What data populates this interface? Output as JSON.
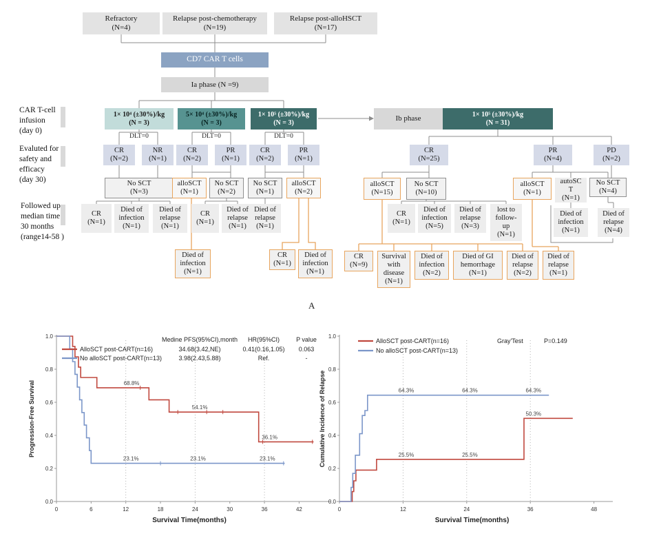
{
  "figure_label": "A",
  "flow": {
    "dlt_label": "DLT=0",
    "side_labels": {
      "infusion": "CAR T-cell\ninfusion\n(day 0)",
      "evaluated": "Evaluted for\n safety and\nefficacy\n(day 30)",
      "followup": "Followed up\nmedian time\n30 months\n(range14-58 )"
    },
    "nodes": {
      "refractory": {
        "label": "Refractory\n(N=4)"
      },
      "relapseChemo": {
        "label": "Relapse post-chemotherapy\n(N=19)"
      },
      "relapseAllo": {
        "label": "Relapse post-alloHSCT\n(N=17)"
      },
      "cd7": {
        "label": "CD7 CAR T cells"
      },
      "iaPhase": {
        "label": "Ia phase (N =9)"
      },
      "dose1": {
        "label": "1× 10⁴ (±30%)/kg\n(N = 3)"
      },
      "dose2": {
        "label": "5× 10⁴ (±30%)/kg\n(N = 3)"
      },
      "dose3": {
        "label": "1× 10⁵ (±30%)/kg\n(N = 3)"
      },
      "ibPhase": {
        "label": "Ib phase"
      },
      "dose4": {
        "label": "1× 10⁵ (±30%)/kg\n(N = 31)"
      },
      "cr1": {
        "label": "CR\n(N=2)"
      },
      "nr1": {
        "label": "NR\n(N=1)"
      },
      "cr2": {
        "label": "CR\n(N=2)"
      },
      "pr2": {
        "label": "PR\n(N=1)"
      },
      "cr3": {
        "label": "CR\n(N=2)"
      },
      "pr3": {
        "label": "PR\n(N=1)"
      },
      "cr25": {
        "label": "CR\n(N=25)"
      },
      "pr4": {
        "label": "PR\n(N=4)"
      },
      "pd2": {
        "label": "PD\n(N=2)"
      },
      "noSCT3": {
        "label": "No SCT\n(N=3)"
      },
      "alloSCT1": {
        "label": "alloSCT\n(N=1)"
      },
      "noSCT2": {
        "label": "No SCT\n(N=2)"
      },
      "noSCT1": {
        "label": "No SCT\n(N=1)"
      },
      "alloSCT2": {
        "label": "alloSCT\n(N=2)"
      },
      "alloSCT15": {
        "label": "alloSCT\n(N=15)"
      },
      "noSCT10": {
        "label": "No SCT\n(N=10)"
      },
      "alloSCT1b": {
        "label": "alloSCT\n(N=1)"
      },
      "autoSCT": {
        "label": "autoSC\nT\n(N=1)"
      },
      "noSCT4": {
        "label": "No SCT\n(N=4)"
      },
      "l_cr1": {
        "label": "CR\n(N=1)"
      },
      "l_inf1": {
        "label": "Died of\ninfection\n(N=1)"
      },
      "l_rel1": {
        "label": "Died of\nrelapse\n(N=1)"
      },
      "l_cr2": {
        "label": "CR\n(N=1)"
      },
      "l_rel2": {
        "label": "Died of\nrelapse\n(N=1)"
      },
      "l_rel3": {
        "label": "Died of\nrelapse\n(N=1)"
      },
      "r_cr1": {
        "label": "CR\n(N=1)"
      },
      "r_inf5": {
        "label": "Died of\ninfection\n(N=5)"
      },
      "r_rel3": {
        "label": "Died of\nrelapse\n(N=3)"
      },
      "r_lost": {
        "label": "lost to\nfollow-\nup\n(N=1)"
      },
      "r_inf1": {
        "label": "Died of\ninfection\n(N=1)"
      },
      "r_rel4": {
        "label": "Died of\nrelapse\n(N=4)"
      },
      "o_inf1": {
        "label": "Died of\ninfection\n(N=1)"
      },
      "o_cr1": {
        "label": "CR\n(N=1)"
      },
      "o_inf2": {
        "label": "Died of\ninfection\n(N=1)"
      },
      "o_cr9": {
        "label": "CR\n(N=9)"
      },
      "o_surv": {
        "label": "Survival\nwith\ndisease\n(N=1)"
      },
      "o_inf3": {
        "label": "Died of\ninfection\n(N=2)"
      },
      "o_gi": {
        "label": "Died of  GI\nhemorrhage\n(N=1)"
      },
      "o_rel2": {
        "label": "Died of\nrelapse\n(N=2)"
      },
      "o_rel1": {
        "label": "Died of\nrelapse\n(N=1)"
      }
    }
  },
  "chart_data": [
    {
      "id": "pfs",
      "type": "line",
      "subtype": "kaplan-meier-step",
      "ylabel": "Progression-Free Survival",
      "xlabel": "Survival Time(months)",
      "xlim": [
        0,
        46
      ],
      "ylim": [
        0,
        1
      ],
      "xticks": [
        0,
        6,
        12,
        18,
        24,
        30,
        36,
        42
      ],
      "yticks": [
        0.0,
        0.2,
        0.4,
        0.6,
        0.8,
        1.0
      ],
      "grid_x": [
        12,
        24,
        36
      ],
      "legend": {
        "columns": [
          "Medine PFS(95%CI),month",
          "HR(95%CI)",
          "P value"
        ],
        "rows": [
          {
            "name": "AlloSCT post-CART(n=16)",
            "color": "#c0483e",
            "values": [
              "34.68(3.42,NE)",
              "0.41(0.16,1.05)",
              "0.063"
            ]
          },
          {
            "name": "No alloSCT post-CART(n=13)",
            "color": "#7b96c9",
            "values": [
              "3.98(2.43,5.88)",
              "Ref.",
              "-"
            ]
          }
        ]
      },
      "series": [
        {
          "name": "AlloSCT post-CART(n=16)",
          "color": "#c0483e",
          "steps": [
            [
              0,
              1
            ],
            [
              2.8,
              1
            ],
            [
              2.8,
              0.938
            ],
            [
              3.2,
              0.938
            ],
            [
              3.2,
              0.875
            ],
            [
              3.8,
              0.875
            ],
            [
              3.8,
              0.813
            ],
            [
              4.2,
              0.813
            ],
            [
              4.2,
              0.75
            ],
            [
              7,
              0.75
            ],
            [
              7,
              0.688
            ],
            [
              16,
              0.688
            ],
            [
              16,
              0.615
            ],
            [
              19.5,
              0.615
            ],
            [
              19.5,
              0.541
            ],
            [
              35,
              0.541
            ],
            [
              35,
              0.361
            ],
            [
              44.5,
              0.361
            ]
          ]
        },
        {
          "name": "No alloSCT post-CART(n=13)",
          "color": "#7b96c9",
          "steps": [
            [
              0,
              1
            ],
            [
              2.3,
              1
            ],
            [
              2.3,
              0.923
            ],
            [
              2.8,
              0.923
            ],
            [
              2.8,
              0.846
            ],
            [
              3.2,
              0.846
            ],
            [
              3.2,
              0.769
            ],
            [
              3.6,
              0.769
            ],
            [
              3.6,
              0.692
            ],
            [
              4,
              0.692
            ],
            [
              4,
              0.615
            ],
            [
              4.4,
              0.615
            ],
            [
              4.4,
              0.538
            ],
            [
              4.8,
              0.538
            ],
            [
              4.8,
              0.462
            ],
            [
              5.2,
              0.462
            ],
            [
              5.2,
              0.385
            ],
            [
              5.7,
              0.385
            ],
            [
              5.7,
              0.308
            ],
            [
              6,
              0.308
            ],
            [
              6,
              0.231
            ],
            [
              39.5,
              0.231
            ]
          ]
        }
      ],
      "censor_marks": [
        {
          "s": 0,
          "x": 14.5,
          "y": 0.688
        },
        {
          "s": 0,
          "x": 21,
          "y": 0.541
        },
        {
          "s": 0,
          "x": 26,
          "y": 0.541
        },
        {
          "s": 0,
          "x": 28.8,
          "y": 0.541
        },
        {
          "s": 0,
          "x": 35.7,
          "y": 0.361
        },
        {
          "s": 0,
          "x": 44.3,
          "y": 0.361
        },
        {
          "s": 1,
          "x": 18,
          "y": 0.231
        },
        {
          "s": 1,
          "x": 39.3,
          "y": 0.231
        }
      ],
      "annotations": [
        {
          "x": 13,
          "y": 0.688,
          "text": "68.8%"
        },
        {
          "x": 24.8,
          "y": 0.541,
          "text": "54.1%"
        },
        {
          "x": 36.9,
          "y": 0.361,
          "text": "36.1%"
        },
        {
          "x": 12.9,
          "y": 0.231,
          "text": "23.1%"
        },
        {
          "x": 24.5,
          "y": 0.231,
          "text": "23.1%"
        },
        {
          "x": 36.5,
          "y": 0.231,
          "text": "23.1%"
        }
      ]
    },
    {
      "id": "cir",
      "type": "line",
      "subtype": "cumulative-incidence-step",
      "ylabel": "Cumulative Incidence of Relapse",
      "xlabel": "Survival Time(months)",
      "xlim": [
        0,
        50
      ],
      "ylim": [
        0,
        1
      ],
      "xticks": [
        0,
        12,
        24,
        36,
        48
      ],
      "yticks": [
        0.0,
        0.2,
        0.4,
        0.6,
        0.8,
        1.0
      ],
      "grid_x": [
        12,
        24,
        36
      ],
      "legend": {
        "rows": [
          {
            "name": "AlloSCT post-CART(n=16)",
            "color": "#c0483e"
          },
          {
            "name": "No alloSCT post-CART(n=13)",
            "color": "#7b96c9"
          }
        ],
        "note": {
          "label": "Gray'Test",
          "value": "P=0.149"
        }
      },
      "series": [
        {
          "name": "AlloSCT post-CART(n=16)",
          "color": "#c0483e",
          "steps": [
            [
              0,
              0
            ],
            [
              2.4,
              0
            ],
            [
              2.4,
              0.06
            ],
            [
              2.7,
              0.06
            ],
            [
              2.7,
              0.125
            ],
            [
              3.1,
              0.125
            ],
            [
              3.1,
              0.19
            ],
            [
              7,
              0.19
            ],
            [
              7,
              0.255
            ],
            [
              34.8,
              0.255
            ],
            [
              34.8,
              0.503
            ],
            [
              44,
              0.503
            ]
          ]
        },
        {
          "name": "No alloSCT post-CART(n=13)",
          "color": "#7b96c9",
          "steps": [
            [
              0,
              0
            ],
            [
              2.2,
              0
            ],
            [
              2.2,
              0.085
            ],
            [
              2.5,
              0.085
            ],
            [
              2.5,
              0.17
            ],
            [
              3,
              0.17
            ],
            [
              3,
              0.28
            ],
            [
              3.8,
              0.28
            ],
            [
              3.8,
              0.41
            ],
            [
              4.3,
              0.41
            ],
            [
              4.3,
              0.52
            ],
            [
              4.8,
              0.52
            ],
            [
              4.8,
              0.55
            ],
            [
              5.3,
              0.55
            ],
            [
              5.3,
              0.643
            ],
            [
              39.5,
              0.643
            ]
          ]
        }
      ],
      "censor_marks": [],
      "annotations": [
        {
          "x": 12.6,
          "y": 0.643,
          "text": "64.3%"
        },
        {
          "x": 24.6,
          "y": 0.643,
          "text": "64.3%"
        },
        {
          "x": 36.6,
          "y": 0.643,
          "text": "64.3%"
        },
        {
          "x": 12.6,
          "y": 0.255,
          "text": "25.5%"
        },
        {
          "x": 24.6,
          "y": 0.255,
          "text": "25.5%"
        },
        {
          "x": 36.6,
          "y": 0.503,
          "text": "50.3%"
        }
      ]
    }
  ]
}
